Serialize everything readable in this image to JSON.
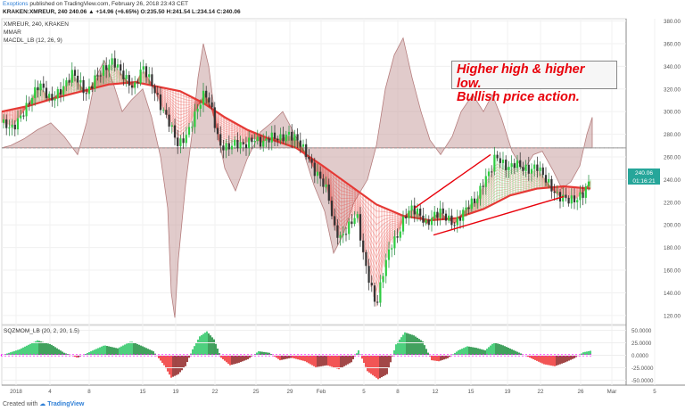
{
  "header": {
    "author": "Exoptions",
    "published": "published on TradingView.com, February 26, 2018 23:43 CET",
    "ohlc": "KRAKEN:XMREUR, 240  240.06  ▲ +14.96 (+6.65%)  O:235.50  H:241.54  L:234.14  C:240.06"
  },
  "legend": {
    "symbol": "XMREUR, 240, KRAKEN",
    "study1": "MMAR",
    "study2": "MACDL_LB (12, 26, 9)",
    "study3": "SQZMOM_LB (20, 2, 20, 1.5)"
  },
  "annotation": {
    "line1": "Higher high & higher low.",
    "line2": "Bullish price action."
  },
  "footer": {
    "created": "Created with",
    "brand": "TradingView"
  },
  "colors": {
    "up": "#26a69a",
    "down": "#ef5350",
    "ribbon_up": "#2ecc40",
    "ribbon_down": "#e53935",
    "macd_area": "#c9a0a0",
    "annotation_text": "#e8000a",
    "squeeze_dot": "#ff00ff"
  },
  "chart_data": [
    {
      "type": "candlestick",
      "title": "XMREUR, 240, KRAKEN",
      "ylim": [
        112,
        382
      ],
      "x_ticks": [
        "2018",
        "4",
        "8",
        "15",
        "19",
        "22",
        "25",
        "29",
        "Feb",
        "5",
        "8",
        "12",
        "15",
        "19",
        "22",
        "26",
        "Mar",
        "5"
      ],
      "y_ticks": [
        120,
        140,
        160,
        180,
        200,
        220,
        240,
        260,
        280,
        300,
        320,
        340,
        360,
        380
      ],
      "last_price_label": "240.06",
      "countdown_label": "01:16:21",
      "price_path": [
        [
          0,
          290
        ],
        [
          12,
          285
        ],
        [
          25,
          300
        ],
        [
          42,
          325
        ],
        [
          55,
          310
        ],
        [
          68,
          320
        ],
        [
          80,
          335
        ],
        [
          95,
          315
        ],
        [
          105,
          330
        ],
        [
          118,
          340
        ],
        [
          125,
          345
        ],
        [
          138,
          330
        ],
        [
          148,
          320
        ],
        [
          158,
          340
        ],
        [
          168,
          325
        ],
        [
          178,
          305
        ],
        [
          188,
          290
        ],
        [
          198,
          270
        ],
        [
          208,
          280
        ],
        [
          218,
          300
        ],
        [
          228,
          318
        ],
        [
          236,
          300
        ],
        [
          244,
          270
        ],
        [
          252,
          268
        ],
        [
          262,
          272
        ],
        [
          272,
          270
        ],
        [
          282,
          276
        ],
        [
          292,
          272
        ],
        [
          302,
          278
        ],
        [
          312,
          276
        ],
        [
          322,
          280
        ],
        [
          332,
          275
        ],
        [
          342,
          262
        ],
        [
          350,
          248
        ],
        [
          358,
          240
        ],
        [
          366,
          228
        ],
        [
          372,
          198
        ],
        [
          380,
          188
        ],
        [
          390,
          200
        ],
        [
          398,
          210
        ],
        [
          406,
          170
        ],
        [
          414,
          145
        ],
        [
          420,
          128
        ],
        [
          428,
          160
        ],
        [
          436,
          182
        ],
        [
          444,
          190
        ],
        [
          452,
          208
        ],
        [
          460,
          215
        ],
        [
          468,
          210
        ],
        [
          476,
          200
        ],
        [
          484,
          208
        ],
        [
          492,
          212
        ],
        [
          500,
          205
        ],
        [
          508,
          200
        ],
        [
          516,
          210
        ],
        [
          524,
          218
        ],
        [
          532,
          222
        ],
        [
          540,
          238
        ],
        [
          548,
          248
        ],
        [
          554,
          262
        ],
        [
          560,
          255
        ],
        [
          568,
          250
        ],
        [
          576,
          255
        ],
        [
          584,
          250
        ],
        [
          592,
          248
        ],
        [
          600,
          252
        ],
        [
          606,
          245
        ],
        [
          612,
          238
        ],
        [
          618,
          230
        ],
        [
          624,
          225
        ],
        [
          630,
          224
        ],
        [
          636,
          222
        ],
        [
          644,
          222
        ],
        [
          652,
          228
        ],
        [
          660,
          240
        ]
      ],
      "ribbon_path": [
        [
          0,
          300
        ],
        [
          30,
          305
        ],
        [
          60,
          312
        ],
        [
          90,
          318
        ],
        [
          120,
          324
        ],
        [
          150,
          326
        ],
        [
          175,
          322
        ],
        [
          200,
          318
        ],
        [
          225,
          308
        ],
        [
          250,
          295
        ],
        [
          275,
          284
        ],
        [
          300,
          276
        ],
        [
          330,
          268
        ],
        [
          360,
          252
        ],
        [
          390,
          235
        ],
        [
          420,
          218
        ],
        [
          450,
          208
        ],
        [
          480,
          204
        ],
        [
          510,
          206
        ],
        [
          540,
          214
        ],
        [
          570,
          226
        ],
        [
          600,
          232
        ],
        [
          630,
          234
        ],
        [
          660,
          232
        ]
      ],
      "annotation_lines": [
        {
          "from": [
            463,
            215
          ],
          "to": [
            548,
            262
          ]
        },
        {
          "from": [
            484,
            191
          ],
          "to": [
            630,
            225
          ]
        }
      ]
    },
    {
      "type": "area",
      "title": "MACDL_LB (12, 26, 9)",
      "zero_line": 268,
      "values": [
        [
          0,
          268
        ],
        [
          10,
          270
        ],
        [
          25,
          276
        ],
        [
          40,
          284
        ],
        [
          55,
          290
        ],
        [
          70,
          278
        ],
        [
          85,
          262
        ],
        [
          95,
          290
        ],
        [
          105,
          330
        ],
        [
          115,
          345
        ],
        [
          125,
          325
        ],
        [
          135,
          300
        ],
        [
          145,
          310
        ],
        [
          158,
          320
        ],
        [
          168,
          295
        ],
        [
          178,
          260
        ],
        [
          186,
          215
        ],
        [
          190,
          140
        ],
        [
          194,
          118
        ],
        [
          198,
          170
        ],
        [
          206,
          235
        ],
        [
          214,
          285
        ],
        [
          220,
          330
        ],
        [
          226,
          360
        ],
        [
          232,
          340
        ],
        [
          240,
          290
        ],
        [
          250,
          250
        ],
        [
          262,
          230
        ],
        [
          275,
          258
        ],
        [
          290,
          282
        ],
        [
          302,
          290
        ],
        [
          315,
          300
        ],
        [
          325,
          285
        ],
        [
          338,
          265
        ],
        [
          350,
          235
        ],
        [
          362,
          212
        ],
        [
          372,
          175
        ],
        [
          382,
          190
        ],
        [
          395,
          220
        ],
        [
          410,
          240
        ],
        [
          420,
          270
        ],
        [
          430,
          320
        ],
        [
          440,
          350
        ],
        [
          450,
          365
        ],
        [
          460,
          330
        ],
        [
          470,
          300
        ],
        [
          480,
          275
        ],
        [
          492,
          262
        ],
        [
          505,
          278
        ],
        [
          515,
          300
        ],
        [
          528,
          315
        ],
        [
          540,
          300
        ],
        [
          550,
          315
        ],
        [
          560,
          295
        ],
        [
          572,
          265
        ],
        [
          585,
          248
        ],
        [
          596,
          262
        ],
        [
          606,
          265
        ],
        [
          618,
          248
        ],
        [
          628,
          232
        ],
        [
          638,
          238
        ],
        [
          648,
          252
        ],
        [
          656,
          280
        ],
        [
          662,
          295
        ]
      ]
    },
    {
      "type": "bar",
      "title": "SQZMOM_LB (20, 2, 20, 1.5)",
      "ylim": [
        -60,
        60
      ],
      "y_ticks": [
        50,
        25,
        0,
        -25,
        -50
      ],
      "y_tick_labels": [
        "50.0000",
        "25.0000",
        "0.0000",
        "-25.0000",
        "-50.0000"
      ],
      "values": [
        [
          0,
          0
        ],
        [
          20,
          12
        ],
        [
          40,
          30
        ],
        [
          55,
          22
        ],
        [
          70,
          5
        ],
        [
          85,
          -5
        ],
        [
          100,
          8
        ],
        [
          115,
          20
        ],
        [
          130,
          14
        ],
        [
          145,
          28
        ],
        [
          158,
          18
        ],
        [
          170,
          8
        ],
        [
          182,
          -20
        ],
        [
          190,
          -45
        ],
        [
          198,
          -38
        ],
        [
          206,
          -22
        ],
        [
          214,
          12
        ],
        [
          222,
          38
        ],
        [
          230,
          48
        ],
        [
          238,
          32
        ],
        [
          246,
          -5
        ],
        [
          256,
          -20
        ],
        [
          266,
          -15
        ],
        [
          276,
          -8
        ],
        [
          288,
          8
        ],
        [
          300,
          5
        ],
        [
          312,
          -10
        ],
        [
          325,
          -5
        ],
        [
          340,
          -12
        ],
        [
          352,
          -24
        ],
        [
          365,
          -20
        ],
        [
          378,
          -28
        ],
        [
          392,
          -14
        ],
        [
          400,
          10
        ],
        [
          410,
          -32
        ],
        [
          422,
          -48
        ],
        [
          432,
          -38
        ],
        [
          442,
          22
        ],
        [
          452,
          46
        ],
        [
          462,
          40
        ],
        [
          472,
          28
        ],
        [
          482,
          -10
        ],
        [
          490,
          -12
        ],
        [
          500,
          -6
        ],
        [
          512,
          10
        ],
        [
          522,
          18
        ],
        [
          532,
          15
        ],
        [
          542,
          10
        ],
        [
          552,
          26
        ],
        [
          562,
          20
        ],
        [
          572,
          12
        ],
        [
          584,
          2
        ],
        [
          596,
          -8
        ],
        [
          608,
          -18
        ],
        [
          620,
          -22
        ],
        [
          632,
          -14
        ],
        [
          642,
          -6
        ],
        [
          652,
          6
        ],
        [
          660,
          9
        ]
      ]
    }
  ]
}
